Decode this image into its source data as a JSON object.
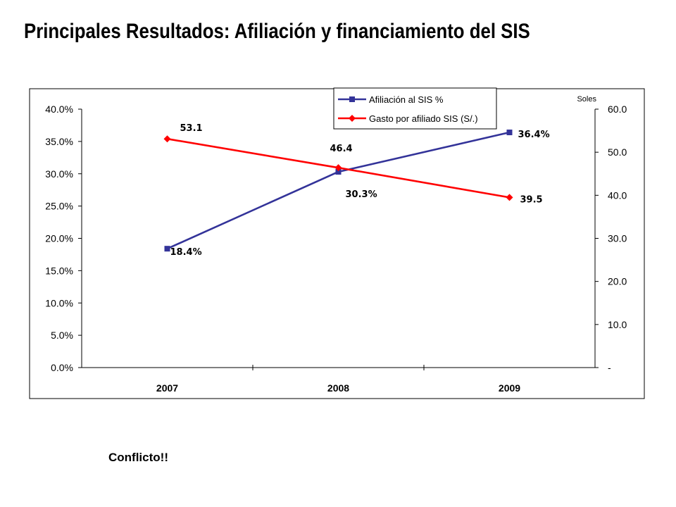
{
  "slide": {
    "title": "Principales Resultados: Afiliación y financiamiento del SIS",
    "footer_note": "Conflicto!!"
  },
  "chart_data": {
    "type": "line",
    "categories": [
      "2007",
      "2008",
      "2009"
    ],
    "series": [
      {
        "name": "Afiliación al SIS %",
        "axis": "left",
        "values": [
          18.4,
          30.3,
          36.4
        ],
        "labels": [
          "18.4%",
          "30.3%",
          "36.4%"
        ],
        "color": "#333399",
        "marker": "square"
      },
      {
        "name": "Gasto por afiliado SIS (S/.)",
        "axis": "right",
        "values": [
          53.1,
          46.4,
          39.5
        ],
        "labels": [
          "53.1",
          "46.4",
          "39.5"
        ],
        "color": "#ff0000",
        "marker": "diamond"
      }
    ],
    "y_left": {
      "range": [
        0,
        40
      ],
      "ticks": [
        0,
        5,
        10,
        15,
        20,
        25,
        30,
        35,
        40
      ],
      "tick_labels": [
        "0.0%",
        "5.0%",
        "10.0%",
        "15.0%",
        "20.0%",
        "25.0%",
        "30.0%",
        "35.0%",
        "40.0%"
      ]
    },
    "y_right": {
      "range": [
        0,
        60
      ],
      "label": "Soles",
      "ticks": [
        0,
        10,
        20,
        30,
        40,
        50,
        60
      ],
      "tick_labels": [
        "-",
        "10.0",
        "20.0",
        "30.0",
        "40.0",
        "50.0",
        "60.0"
      ]
    },
    "grid": false,
    "legend_position": "top-center"
  }
}
